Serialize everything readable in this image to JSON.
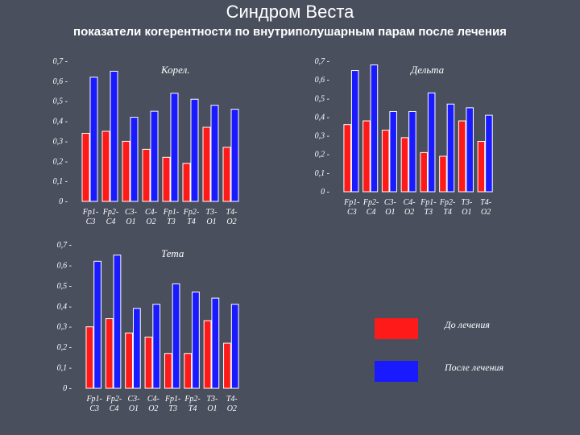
{
  "header": {
    "title": "Синдром Веста",
    "subtitle": "показатели когерентности по внутриполушарным парам после лечения"
  },
  "colors": {
    "before": "#ff1a1a",
    "after": "#1a1aff",
    "background": "#4a4f5e"
  },
  "legend": {
    "before_label": "До лечения",
    "after_label": "После лечения"
  },
  "chart_data": [
    {
      "type": "bar",
      "title": "Корел.",
      "categories": [
        [
          "Fp1-",
          "C3"
        ],
        [
          "Fp2-",
          "C4"
        ],
        [
          "C3-",
          "O1"
        ],
        [
          "C4-",
          "O2"
        ],
        [
          "Fp1-",
          "T3"
        ],
        [
          "Fp2-",
          "T4"
        ],
        [
          "T3-",
          "O1"
        ],
        [
          "T4-",
          "O2"
        ]
      ],
      "ylim": [
        0,
        0.7
      ],
      "yticks": [
        "0",
        "0,1",
        "0,2",
        "0,3",
        "0,4",
        "0,5",
        "0,6",
        "0,7"
      ],
      "series": [
        {
          "name": "До лечения",
          "values": [
            0.34,
            0.35,
            0.3,
            0.26,
            0.22,
            0.19,
            0.37,
            0.27
          ]
        },
        {
          "name": "После лечения",
          "values": [
            0.62,
            0.65,
            0.42,
            0.45,
            0.54,
            0.51,
            0.48,
            0.46
          ]
        }
      ]
    },
    {
      "type": "bar",
      "title": "Дельта",
      "categories": [
        [
          "Fp1-",
          "C3"
        ],
        [
          "Fp2-",
          "C4"
        ],
        [
          "C3-",
          "O1"
        ],
        [
          "C4-",
          "O2"
        ],
        [
          "Fp1-",
          "T3"
        ],
        [
          "Fp2-",
          "T4"
        ],
        [
          "T3-",
          "O1"
        ],
        [
          "T4-",
          "O2"
        ]
      ],
      "ylim": [
        0,
        0.7
      ],
      "yticks": [
        "0",
        "0,1",
        "0,2",
        "0,3",
        "0,4",
        "0,5",
        "0,6",
        "0,7"
      ],
      "series": [
        {
          "name": "До лечения",
          "values": [
            0.36,
            0.38,
            0.33,
            0.29,
            0.21,
            0.19,
            0.38,
            0.27
          ]
        },
        {
          "name": "После лечения",
          "values": [
            0.65,
            0.68,
            0.43,
            0.43,
            0.53,
            0.47,
            0.45,
            0.41
          ]
        }
      ]
    },
    {
      "type": "bar",
      "title": "Тета",
      "categories": [
        [
          "Fp1-",
          "C3"
        ],
        [
          "Fp2-",
          "C4"
        ],
        [
          "C3-",
          "O1"
        ],
        [
          "C4-",
          "O2"
        ],
        [
          "Fp1-",
          "T3"
        ],
        [
          "Fp2-",
          "T4"
        ],
        [
          "T3-",
          "O1"
        ],
        [
          "T4-",
          "O2"
        ]
      ],
      "ylim": [
        0,
        0.7
      ],
      "yticks": [
        "0",
        "0,1",
        "0,2",
        "0,3",
        "0,4",
        "0,5",
        "0,6",
        "0,7"
      ],
      "series": [
        {
          "name": "До лечения",
          "values": [
            0.3,
            0.34,
            0.27,
            0.25,
            0.17,
            0.17,
            0.33,
            0.22
          ]
        },
        {
          "name": "После лечения",
          "values": [
            0.62,
            0.65,
            0.39,
            0.41,
            0.51,
            0.47,
            0.44,
            0.41
          ]
        }
      ]
    }
  ]
}
